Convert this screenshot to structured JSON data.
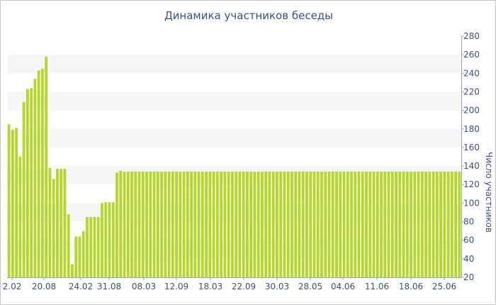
{
  "chart_data": {
    "type": "bar",
    "title": "Динамика участников беседы",
    "xlabel": "",
    "ylabel": "Число участников",
    "ylim": [
      20,
      280
    ],
    "yticks": [
      20,
      40,
      60,
      80,
      100,
      120,
      140,
      160,
      180,
      200,
      220,
      240,
      260,
      280
    ],
    "y_axis_position": "right",
    "grid": "alternating horizontal bands",
    "bar_color": "#b5d827",
    "band_color": "#f6f6f6",
    "text_color": "#3c4f8f",
    "x_tick_labels": [
      "2.02",
      "20.08",
      "24.02",
      "31.08",
      "08.03",
      "12.09",
      "18.03",
      "22.09",
      "30.03",
      "28.05",
      "04.06",
      "11.06",
      "18.06",
      "25.06"
    ],
    "values": [
      185,
      179,
      181,
      150,
      209,
      223,
      224,
      234,
      243,
      245,
      258,
      138,
      126,
      137,
      137,
      137,
      88,
      34,
      64,
      64,
      70,
      85,
      85,
      85,
      85,
      100,
      101,
      101,
      101,
      133,
      135,
      134,
      134,
      134,
      134,
      134,
      134,
      134,
      134,
      134,
      134,
      134,
      134,
      134,
      134,
      134,
      134,
      134,
      134,
      134,
      134,
      134,
      134,
      134,
      134,
      134,
      134,
      134,
      134,
      134,
      134,
      134,
      134,
      134,
      134,
      134,
      134,
      134,
      134,
      134,
      134,
      134,
      134,
      134,
      134,
      134,
      134,
      134,
      134,
      134,
      134,
      134,
      134,
      134,
      134,
      134,
      134,
      134,
      134,
      134,
      134,
      134,
      134,
      134,
      134,
      134,
      134,
      134,
      134,
      134,
      134,
      134,
      134,
      134,
      134,
      134,
      134,
      134,
      134,
      134,
      134,
      134,
      134,
      134,
      134,
      134,
      134,
      134,
      134,
      134,
      134,
      134
    ]
  }
}
